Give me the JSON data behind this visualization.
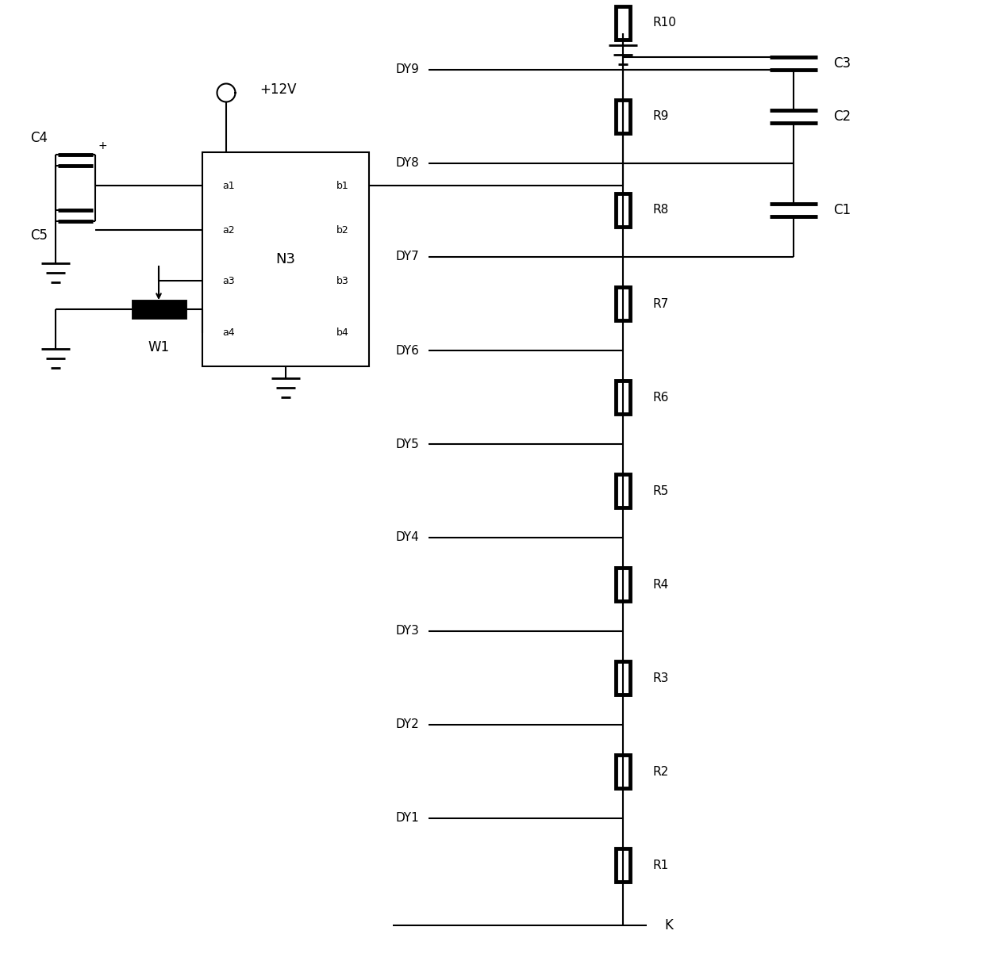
{
  "bg_color": "#ffffff",
  "line_color": "#000000",
  "lw": 1.5,
  "tlw": 3.5,
  "fig_width": 12.4,
  "fig_height": 12.17,
  "left": {
    "vcc_label": "+12V",
    "c4_label": "C4",
    "c5_label": "C5",
    "w1_label": "W1",
    "n3_label": "N3",
    "a_pins": [
      "a1",
      "a2",
      "a3",
      "a4"
    ],
    "b_pins": [
      "b1",
      "b2",
      "b3",
      "b4"
    ]
  },
  "right": {
    "dy_labels": [
      "DY9",
      "DY8",
      "DY7",
      "DY6",
      "DY5",
      "DY4",
      "DY3",
      "DY2",
      "DY1"
    ],
    "r_labels": [
      "R10",
      "R9",
      "R8",
      "R7",
      "R6",
      "R5",
      "R4",
      "R3",
      "R2",
      "R1"
    ],
    "c_labels": [
      "C3",
      "C2",
      "C1"
    ],
    "k_label": "K"
  }
}
